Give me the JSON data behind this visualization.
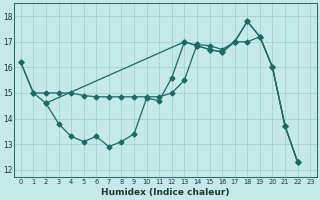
{
  "xlabel": "Humidex (Indice chaleur)",
  "bg_color": "#c5e8e8",
  "grid_color": "#9ecece",
  "line_color": "#1a6b60",
  "xlim": [
    -0.5,
    23.5
  ],
  "ylim": [
    11.7,
    18.5
  ],
  "yticks": [
    12,
    13,
    14,
    15,
    16,
    17,
    18
  ],
  "xtick_labels": [
    "0",
    "1",
    "2",
    "3",
    "4",
    "5",
    "6",
    "7",
    "8",
    "9",
    "10",
    "11",
    "12",
    "13",
    "14",
    "15",
    "16",
    "17",
    "18",
    "19",
    "20",
    "21",
    "22",
    "23"
  ],
  "line1_x": [
    0,
    1,
    2,
    13,
    14,
    15,
    16,
    17,
    18,
    19,
    20,
    21,
    22
  ],
  "line1_y": [
    16.2,
    15.0,
    14.6,
    17.0,
    16.85,
    16.7,
    16.6,
    17.0,
    17.8,
    17.2,
    16.0,
    13.7,
    12.3
  ],
  "line2_x": [
    0,
    1,
    2,
    3,
    4,
    5,
    6,
    7,
    8,
    9,
    10,
    11,
    12,
    13,
    14,
    15,
    16,
    17,
    18,
    19,
    20,
    21,
    22
  ],
  "line2_y": [
    16.2,
    15.0,
    15.0,
    15.0,
    15.0,
    14.9,
    14.85,
    14.85,
    14.85,
    14.85,
    14.85,
    14.85,
    15.0,
    15.5,
    16.9,
    16.85,
    16.7,
    17.0,
    17.0,
    17.2,
    16.0,
    13.7,
    12.3
  ],
  "line3_x": [
    2,
    3,
    4,
    5,
    6,
    7,
    8,
    9,
    10,
    11,
    12,
    13,
    14,
    15,
    16,
    17,
    18,
    19,
    20,
    21,
    22
  ],
  "line3_y": [
    14.6,
    13.8,
    13.3,
    13.1,
    13.3,
    12.9,
    13.1,
    13.4,
    14.8,
    14.7,
    15.6,
    17.0,
    16.85,
    16.7,
    16.6,
    17.0,
    17.8,
    17.2,
    16.0,
    13.7,
    12.3
  ]
}
